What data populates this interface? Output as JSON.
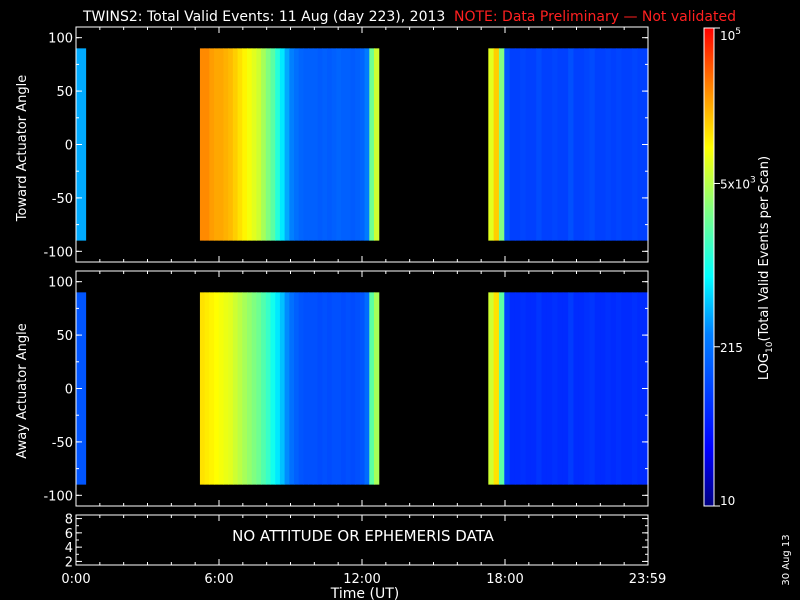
{
  "chart_data": {
    "type": "heatmap",
    "title": "TWINS2: Total Valid Events: 11 Aug (day 223), 2013",
    "note": "NOTE: Data Preliminary — Not validated",
    "colors": {
      "title": "#ffffff",
      "note": "#ff2020",
      "background": "#000000",
      "axes": "#ffffff"
    },
    "x_axis": {
      "label": "Time (UT)",
      "range_hours": [
        0,
        24
      ],
      "ticks": [
        {
          "hour": 0,
          "label": "0:00"
        },
        {
          "hour": 6,
          "label": "6:00"
        },
        {
          "hour": 12,
          "label": "12:00"
        },
        {
          "hour": 18,
          "label": "18:00"
        },
        {
          "hour": 23.98,
          "label": "23:59"
        }
      ]
    },
    "panels": [
      {
        "ylabel": "Toward Actuator Angle",
        "ylim": [
          -110,
          110
        ],
        "data_angle_range": [
          -90,
          90
        ],
        "yticks": [
          100,
          50,
          0,
          -50,
          -100
        ],
        "intervals": [
          {
            "start": 0.0,
            "end": 0.4,
            "cols": [
              0.4
            ]
          },
          {
            "start": 5.2,
            "end": 12.7,
            "cols": [
              0.87,
              0.87,
              0.85,
              0.84,
              0.84,
              0.83,
              0.82,
              0.8,
              0.78,
              0.76,
              0.74,
              0.72,
              0.7,
              0.66,
              0.62,
              0.58,
              0.52,
              0.46,
              0.4,
              0.36,
              0.33,
              0.31,
              0.3,
              0.3,
              0.3,
              0.29,
              0.3,
              0.29,
              0.3,
              0.31,
              0.3,
              0.3,
              0.29,
              0.3,
              0.31,
              0.35,
              0.6,
              0.7
            ]
          },
          {
            "start": 17.3,
            "end": 24.0,
            "cols": [
              0.72,
              0.8,
              0.62,
              0.28,
              0.24,
              0.24,
              0.25,
              0.24,
              0.24,
              0.26,
              0.24,
              0.24,
              0.25,
              0.24,
              0.24,
              0.27,
              0.24,
              0.24,
              0.25,
              0.26,
              0.24,
              0.24,
              0.25,
              0.24,
              0.25,
              0.24,
              0.24,
              0.25,
              0.24,
              0.24
            ]
          }
        ]
      },
      {
        "ylabel": "Away Actuator Angle",
        "ylim": [
          -110,
          110
        ],
        "data_angle_range": [
          -90,
          90
        ],
        "yticks": [
          100,
          50,
          0,
          -50,
          -100
        ],
        "intervals": [
          {
            "start": 0.0,
            "end": 0.4,
            "cols": [
              0.28
            ]
          },
          {
            "start": 5.2,
            "end": 12.7,
            "cols": [
              0.78,
              0.77,
              0.76,
              0.75,
              0.74,
              0.73,
              0.72,
              0.7,
              0.68,
              0.66,
              0.64,
              0.62,
              0.6,
              0.57,
              0.54,
              0.5,
              0.46,
              0.42,
              0.37,
              0.33,
              0.3,
              0.28,
              0.27,
              0.27,
              0.27,
              0.26,
              0.27,
              0.26,
              0.27,
              0.27,
              0.26,
              0.27,
              0.26,
              0.27,
              0.28,
              0.32,
              0.58,
              0.66
            ]
          },
          {
            "start": 17.3,
            "end": 24.0,
            "cols": [
              0.7,
              0.78,
              0.58,
              0.24,
              0.2,
              0.2,
              0.21,
              0.2,
              0.2,
              0.22,
              0.2,
              0.2,
              0.21,
              0.2,
              0.2,
              0.23,
              0.2,
              0.2,
              0.21,
              0.22,
              0.2,
              0.2,
              0.21,
              0.2,
              0.21,
              0.2,
              0.2,
              0.21,
              0.2,
              0.2
            ]
          }
        ]
      },
      {
        "ylabel": "",
        "ylim": [
          1.5,
          8.5
        ],
        "yticks": [
          8,
          6,
          4,
          2
        ],
        "message": "NO ATTITUDE OR EPHEMERIS DATA"
      }
    ],
    "colorbar": {
      "label_prefix": "LOG",
      "label_sub": "10",
      "label_suffix": "(Total Valid Events per Scan)",
      "scale": "log",
      "range": [
        10,
        100000
      ],
      "ticks": [
        {
          "base": "10",
          "exp": "5",
          "value": 100000
        },
        {
          "base": "5x10",
          "exp": "3",
          "value": 5000
        },
        {
          "base": "215",
          "exp": "",
          "value": 215
        },
        {
          "base": "10",
          "exp": "",
          "value": 10
        }
      ]
    },
    "date_stamp": "30 Aug 13"
  }
}
